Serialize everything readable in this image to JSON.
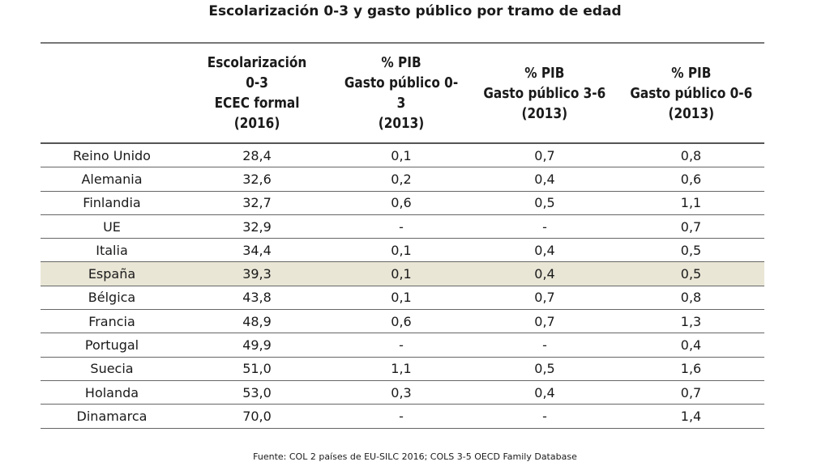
{
  "title": "Escolarización 0-3 y gasto público por tramo de edad",
  "source": "Fuente: COL 2 países de EU-SILC 2016; COLS 3-5 OECD Family Database",
  "highlight_color": "#e9e6d6",
  "chart_data": {
    "type": "table",
    "title": "Escolarización 0-3 y gasto público por tramo de edad",
    "columns": [
      "",
      "Escolarización\n0-3\nECEC formal\n(2016)",
      "% PIB\nGasto público 0-3\n(2013)",
      "% PIB\nGasto público 3-6\n(2013)",
      "% PIB\nGasto público 0-6\n(2013)"
    ],
    "highlighted_row": "España",
    "rows": [
      [
        "Reino Unido",
        "28,4",
        "0,1",
        "0,7",
        "0,8"
      ],
      [
        "Alemania",
        "32,6",
        "0,2",
        "0,4",
        "0,6"
      ],
      [
        "Finlandia",
        "32,7",
        "0,6",
        "0,5",
        "1,1"
      ],
      [
        "UE",
        "32,9",
        "-",
        "-",
        "0,7"
      ],
      [
        "Italia",
        "34,4",
        "0,1",
        "0,4",
        "0,5"
      ],
      [
        "España",
        "39,3",
        "0,1",
        "0,4",
        "0,5"
      ],
      [
        "Bélgica",
        "43,8",
        "0,1",
        "0,7",
        "0,8"
      ],
      [
        "Francia",
        "48,9",
        "0,6",
        "0,7",
        "1,3"
      ],
      [
        "Portugal",
        "49,9",
        "-",
        "-",
        "0,4"
      ],
      [
        "Suecia",
        "51,0",
        "1,1",
        "0,5",
        "1,6"
      ],
      [
        "Holanda",
        "53,0",
        "0,3",
        "0,4",
        "0,7"
      ],
      [
        "Dinamarca",
        "70,0",
        "-",
        "-",
        "1,4"
      ]
    ]
  }
}
